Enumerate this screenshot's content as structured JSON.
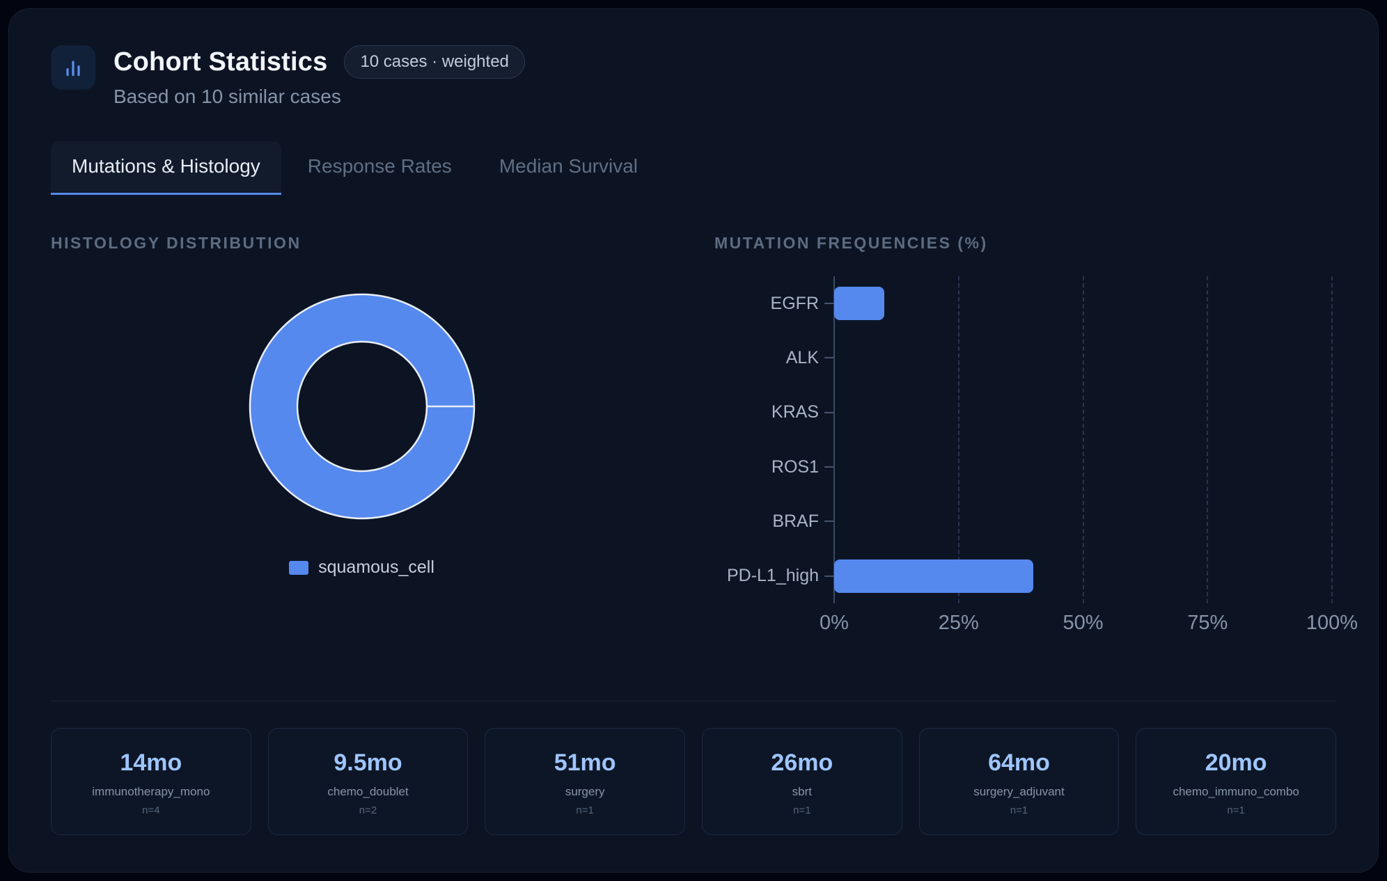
{
  "header": {
    "title": "Cohort Statistics",
    "badge": "10 cases · weighted",
    "subtitle": "Based on 10 similar cases"
  },
  "tabs": [
    {
      "label": "Mutations & Histology",
      "active": true
    },
    {
      "label": "Response Rates",
      "active": false
    },
    {
      "label": "Median Survival",
      "active": false
    }
  ],
  "sections": {
    "histology_heading": "HISTOLOGY DISTRIBUTION",
    "mutations_heading": "MUTATION FREQUENCIES (%)"
  },
  "chart_data": [
    {
      "type": "pie",
      "subtype": "donut",
      "title": "HISTOLOGY DISTRIBUTION",
      "labels": [
        "squamous_cell"
      ],
      "values": [
        100
      ],
      "colors": [
        "#5589ee"
      ],
      "legend_position": "bottom"
    },
    {
      "type": "bar",
      "orientation": "horizontal",
      "title": "MUTATION FREQUENCIES (%)",
      "categories": [
        "EGFR",
        "ALK",
        "KRAS",
        "ROS1",
        "BRAF",
        "PD-L1_high"
      ],
      "values": [
        10,
        0,
        0,
        0,
        0,
        40
      ],
      "xlim": [
        0,
        100
      ],
      "xticks": [
        {
          "value": 0,
          "label": "0%"
        },
        {
          "value": 25,
          "label": "25%"
        },
        {
          "value": 50,
          "label": "50%"
        },
        {
          "value": 75,
          "label": "75%"
        },
        {
          "value": 100,
          "label": "100%"
        }
      ],
      "grid": "dashed-vertical",
      "bar_color": "#5589ee"
    }
  ],
  "survival_cards": [
    {
      "value": "14mo",
      "label": "immunotherapy_mono",
      "n": "n=4"
    },
    {
      "value": "9.5mo",
      "label": "chemo_doublet",
      "n": "n=2"
    },
    {
      "value": "51mo",
      "label": "surgery",
      "n": "n=1"
    },
    {
      "value": "26mo",
      "label": "sbrt",
      "n": "n=1"
    },
    {
      "value": "64mo",
      "label": "surgery_adjuvant",
      "n": "n=1"
    },
    {
      "value": "20mo",
      "label": "chemo_immuno_combo",
      "n": "n=1"
    }
  ],
  "colors": {
    "accent": "#5589ee",
    "stat_value": "#9ec5fd",
    "card_bg": "#0c1424",
    "page_bg": "#020510"
  }
}
